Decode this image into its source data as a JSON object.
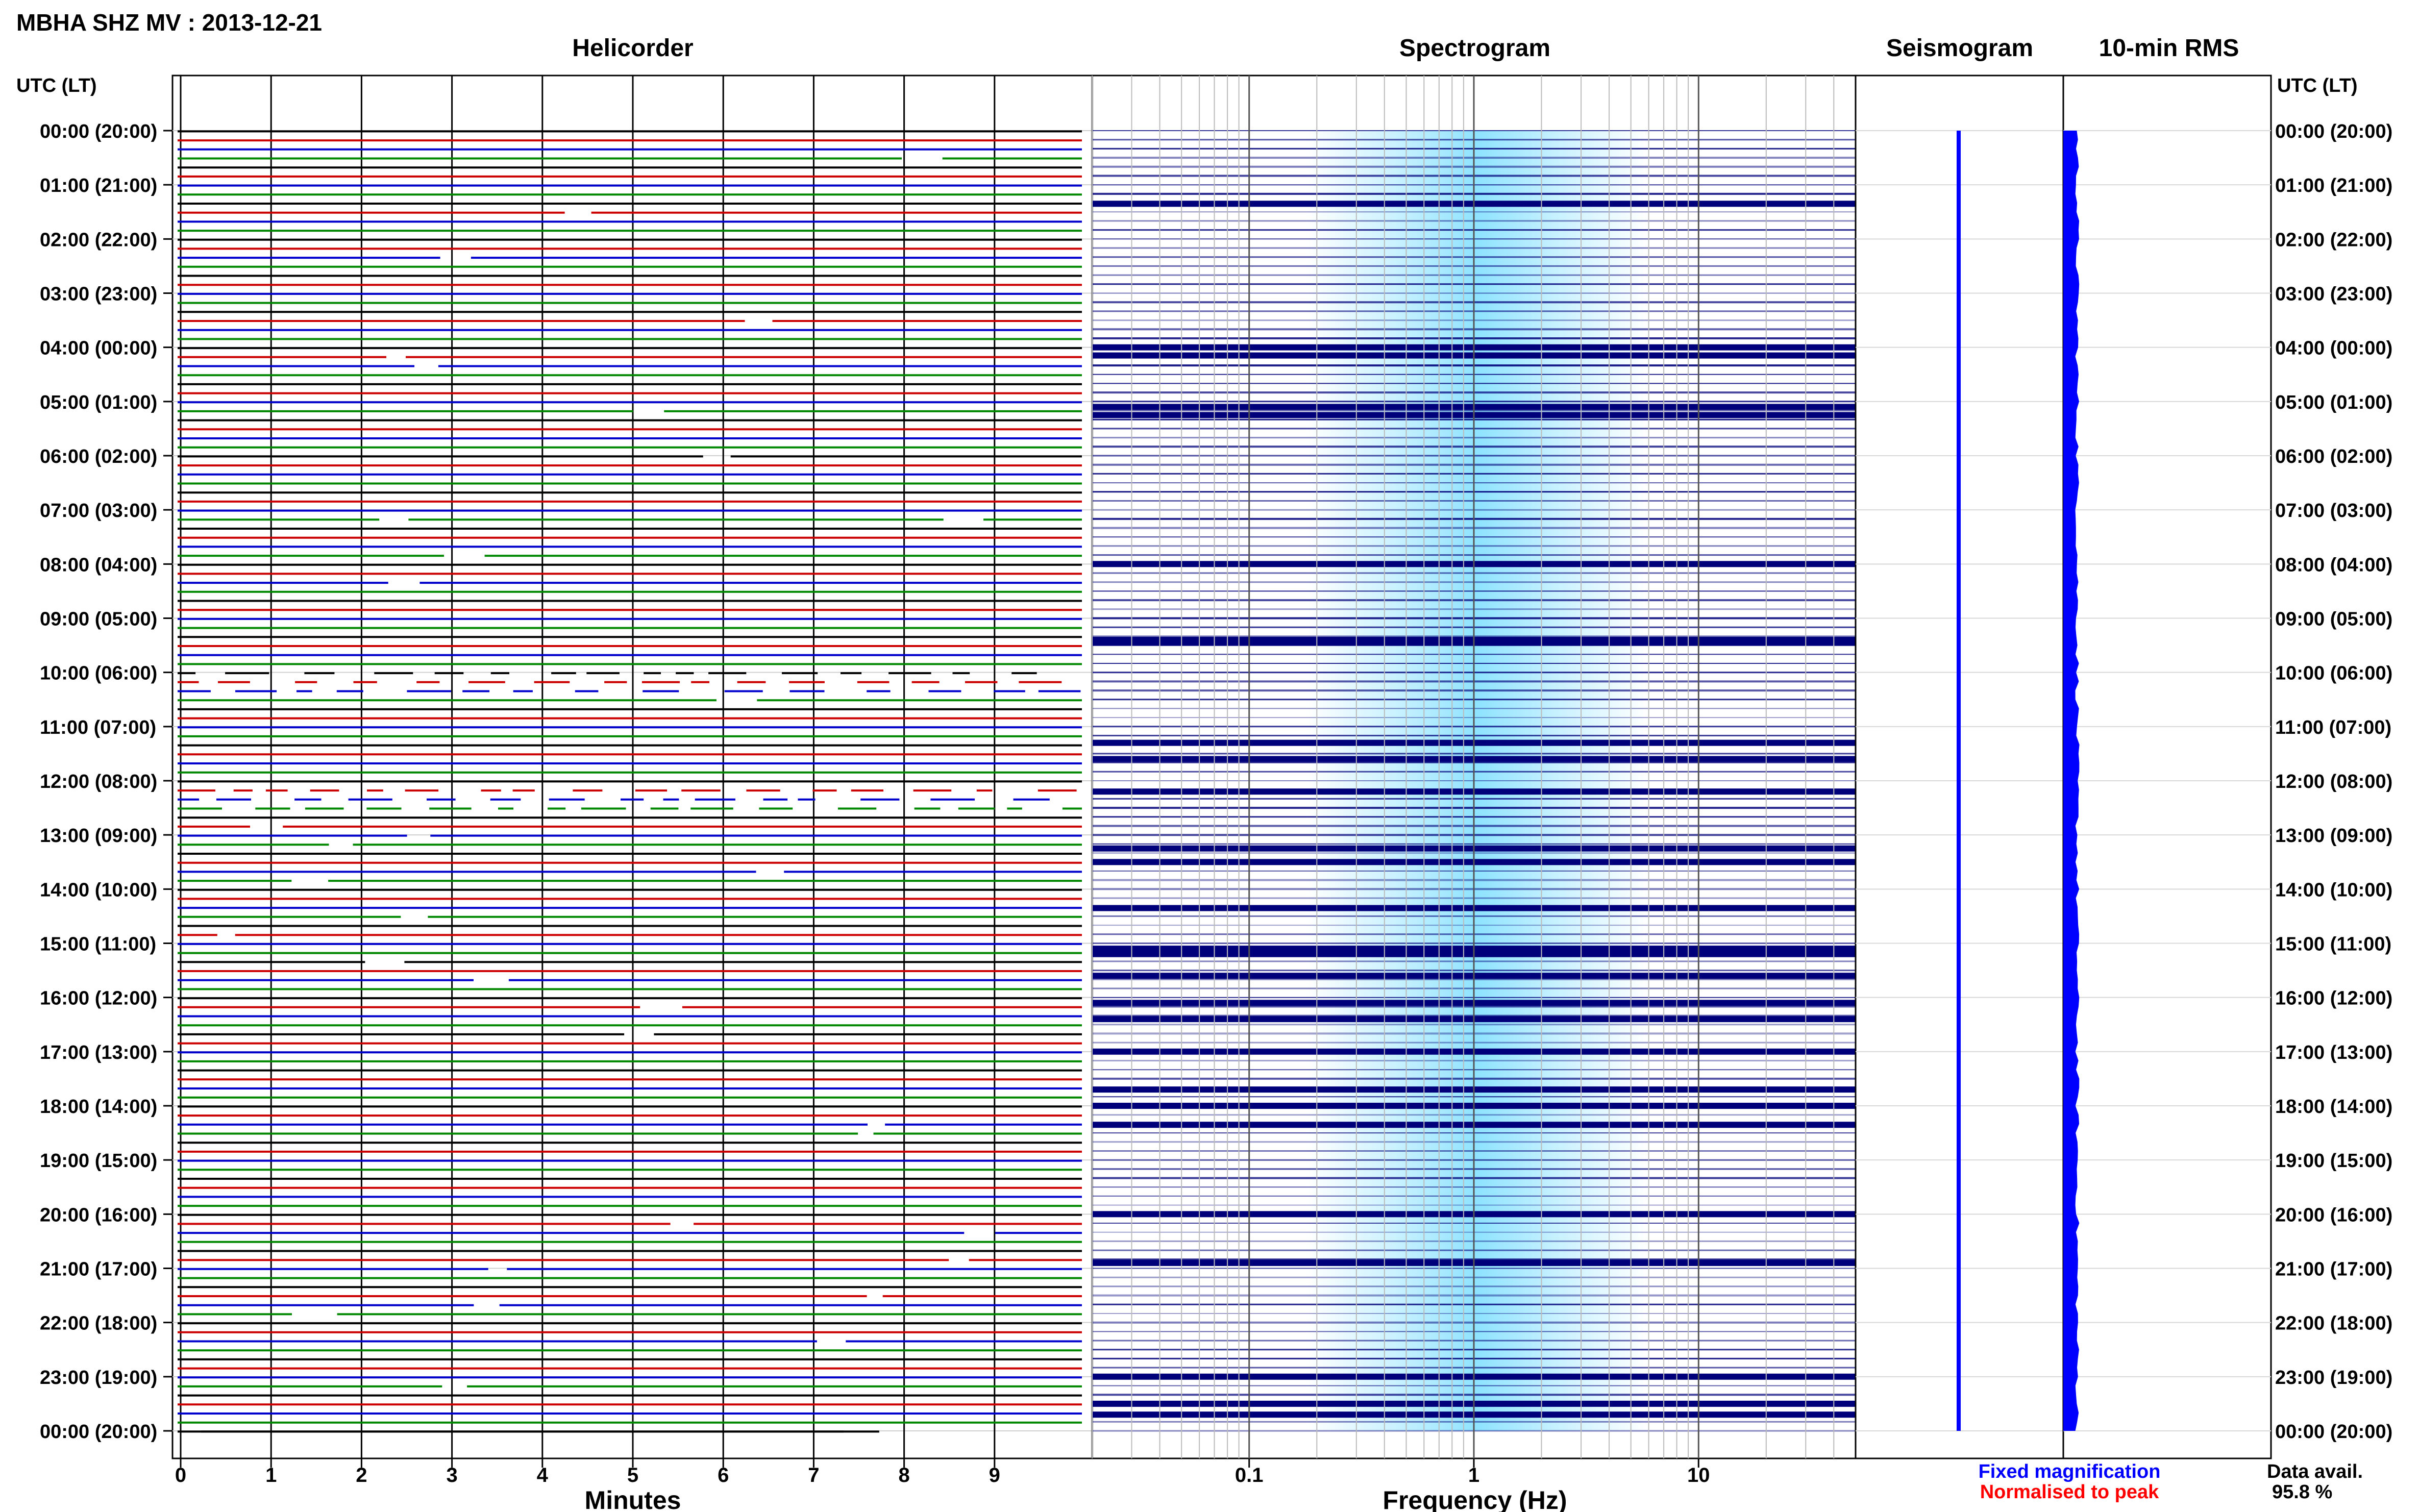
{
  "title": "MBHA SHZ MV : 2013-12-21",
  "time_axis_label": "UTC (LT)",
  "panels": {
    "helicorder": "Helicorder",
    "spectrogram": "Spectrogram",
    "seismogram": "Seismogram",
    "rms": "10-min RMS"
  },
  "legend": {
    "fixed": "Fixed magnification",
    "normalised": "Normalised to peak"
  },
  "availability": {
    "label": "Data avail.",
    "value": "95.8 %"
  },
  "colors": {
    "trace_cycle": [
      "#000000",
      "#cc0000",
      "#0000cc",
      "#008800"
    ],
    "fixed": "#0000ff",
    "normalised": "#ff0000",
    "spectrogram_dark": "#00007a",
    "spectrogram_light": "#33ccff"
  },
  "chart_data": [
    {
      "type": "line",
      "name": "Helicorder",
      "xlabel": "Minutes",
      "xlim": [
        0,
        10
      ],
      "xticks": [
        0,
        1,
        2,
        3,
        4,
        5,
        6,
        7,
        8,
        9
      ],
      "ylabel": "UTC (LT)",
      "rows_per_hour": 6,
      "hours": 24,
      "grid": true,
      "data_gaps_note_rows": [
        60,
        61,
        62,
        73,
        74,
        75
      ]
    },
    {
      "type": "heatmap",
      "name": "Spectrogram",
      "xlabel": "Frequency (Hz)",
      "xscale": "log",
      "xlim": [
        0.02,
        50
      ],
      "xticks": [
        0.1,
        1,
        10
      ],
      "xtick_labels": [
        "0.1",
        "1",
        "10"
      ],
      "grid": true,
      "dark_band_hours": [
        1.35,
        4.0,
        4.15,
        5.1,
        5.25,
        8.0,
        9.4,
        9.45,
        11.3,
        11.6,
        12.2,
        13.25,
        13.5,
        14.35,
        15.1,
        15.2,
        15.6,
        16.1,
        16.4,
        17.0,
        17.7,
        18.0,
        18.35,
        20.0,
        20.9,
        23.0,
        23.5,
        23.7
      ]
    },
    {
      "type": "line",
      "name": "Seismogram",
      "orientation": "vertical",
      "color": "#0000ff"
    },
    {
      "type": "area",
      "name": "10-min RMS",
      "orientation": "vertical",
      "color": "#0000ff",
      "level_fraction": 0.45
    }
  ],
  "time_ticks": [
    "00:00 (20:00)",
    "01:00 (21:00)",
    "02:00 (22:00)",
    "03:00 (23:00)",
    "04:00 (00:00)",
    "05:00 (01:00)",
    "06:00 (02:00)",
    "07:00 (03:00)",
    "08:00 (04:00)",
    "09:00 (05:00)",
    "10:00 (06:00)",
    "11:00 (07:00)",
    "12:00 (08:00)",
    "13:00 (09:00)",
    "14:00 (10:00)",
    "15:00 (11:00)",
    "16:00 (12:00)",
    "17:00 (13:00)",
    "18:00 (14:00)",
    "19:00 (15:00)",
    "20:00 (16:00)",
    "21:00 (17:00)",
    "22:00 (18:00)",
    "23:00 (19:00)",
    "00:00 (20:00)"
  ]
}
